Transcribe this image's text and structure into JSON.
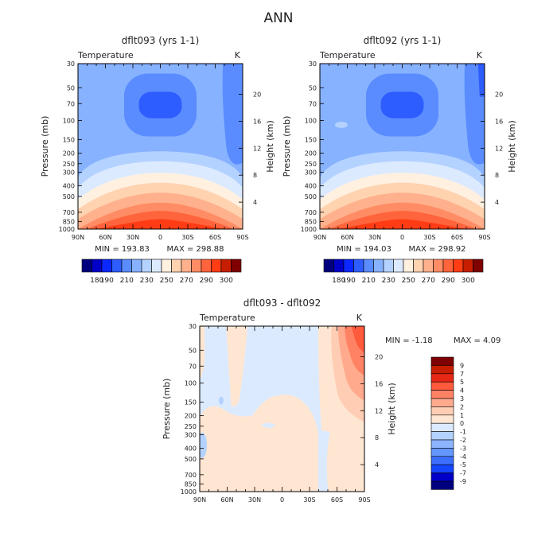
{
  "main_title": "ANN",
  "colors": {
    "palette": [
      "#00007f",
      "#0000c8",
      "#0a28ff",
      "#2d5cff",
      "#5a8cff",
      "#87b2ff",
      "#b4d2ff",
      "#dceaff",
      "#fff0e0",
      "#ffd2b0",
      "#ffb08c",
      "#ff8c64",
      "#ff643c",
      "#ff3c14",
      "#c81e00",
      "#7f0000"
    ],
    "diff_palette": [
      "#00007f",
      "#0000c8",
      "#1446ff",
      "#3c6eff",
      "#6496ff",
      "#8cb4ff",
      "#b4d2ff",
      "#dceaff",
      "#ffe6d2",
      "#ffcdb4",
      "#ffaa8c",
      "#ff8264",
      "#ff5a3c",
      "#e62814",
      "#c81e00",
      "#7f0000"
    ]
  },
  "chart_data": [
    {
      "type": "heatmap",
      "title": "dflt093 (yrs 1-1)",
      "variable": "Temperature",
      "units": "K",
      "ylabel": "Pressure (mb)",
      "ylabel_right": "Height (km)",
      "x_ticks": [
        "90N",
        "60N",
        "30N",
        "0",
        "30S",
        "60S",
        "90S"
      ],
      "pressure_ticks": [
        "30",
        "50",
        "70",
        "100",
        "150",
        "200",
        "250",
        "300",
        "400",
        "500",
        "700",
        "850",
        "1000"
      ],
      "height_ticks": [
        "20",
        "16",
        "12",
        "8",
        "4"
      ],
      "min_label": "MIN = 193.83",
      "max_label": "MAX = 298.88",
      "min": 193.83,
      "max": 298.88,
      "colorbar_labels": [
        "180",
        "190",
        "210",
        "230",
        "250",
        "270",
        "290",
        "300"
      ],
      "levels": [
        180,
        185,
        190,
        200,
        210,
        220,
        230,
        240,
        250,
        260,
        270,
        280,
        290,
        295,
        300
      ]
    },
    {
      "type": "heatmap",
      "title": "dflt092 (yrs 1-1)",
      "variable": "Temperature",
      "units": "K",
      "ylabel": "Pressure (mb)",
      "ylabel_right": "Height (km)",
      "x_ticks": [
        "90N",
        "60N",
        "30N",
        "0",
        "30S",
        "60S",
        "90S"
      ],
      "pressure_ticks": [
        "30",
        "50",
        "70",
        "100",
        "150",
        "200",
        "250",
        "300",
        "400",
        "500",
        "700",
        "850",
        "1000"
      ],
      "height_ticks": [
        "20",
        "16",
        "12",
        "8",
        "4"
      ],
      "min_label": "MIN = 194.03",
      "max_label": "MAX = 298.92",
      "min": 194.03,
      "max": 298.92,
      "colorbar_labels": [
        "180",
        "190",
        "210",
        "230",
        "250",
        "270",
        "290",
        "300"
      ],
      "levels": [
        180,
        185,
        190,
        200,
        210,
        220,
        230,
        240,
        250,
        260,
        270,
        280,
        290,
        295,
        300
      ]
    },
    {
      "type": "heatmap",
      "title": "dflt093 - dflt092",
      "variable": "Temperature",
      "units": "K",
      "ylabel": "Pressure (mb)",
      "ylabel_right": "Height (km)",
      "x_ticks": [
        "90N",
        "60N",
        "30N",
        "0",
        "30S",
        "60S",
        "90S"
      ],
      "pressure_ticks": [
        "30",
        "50",
        "70",
        "100",
        "150",
        "200",
        "250",
        "300",
        "400",
        "500",
        "700",
        "850",
        "1000"
      ],
      "height_ticks": [
        "20",
        "16",
        "12",
        "8",
        "4"
      ],
      "min_label": "MIN =   -1.18",
      "max_label": "MAX =    4.09",
      "min": -1.18,
      "max": 4.09,
      "colorbar_labels": [
        "9",
        "7",
        "5",
        "4",
        "3",
        "2",
        "1",
        "0",
        "-1",
        "-2",
        "-3",
        "-4",
        "-5",
        "-7",
        "-9"
      ],
      "levels": [
        -9,
        -7,
        -5,
        -4,
        -3,
        -2,
        -1,
        0,
        1,
        2,
        3,
        4,
        5,
        7,
        9
      ]
    }
  ]
}
